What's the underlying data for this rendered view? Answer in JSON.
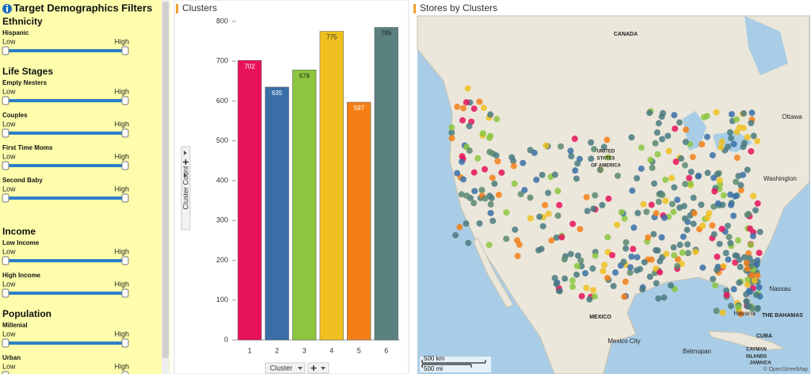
{
  "filters": {
    "title": "Target Demographics Filters",
    "low": "Low",
    "high": "High",
    "groups": [
      {
        "name": "Ethnicity",
        "items": [
          "Hispanic"
        ]
      },
      {
        "name": "Life Stages",
        "items": [
          "Empty Nesters",
          "Couples",
          "First Time Moms",
          "Second Baby"
        ]
      },
      {
        "name": "Income",
        "items": [
          "Low Income",
          "High Income"
        ]
      },
      {
        "name": "Population",
        "items": [
          "Millenial",
          "Urban"
        ]
      }
    ]
  },
  "chart_data": {
    "type": "bar",
    "title": "Clusters",
    "x_label": "Cluster",
    "y_label": "Cluster Count",
    "categories": [
      "1",
      "2",
      "3",
      "4",
      "5",
      "6"
    ],
    "values": [
      702,
      635,
      678,
      775,
      597,
      785
    ],
    "colors": [
      "#e8125c",
      "#3a6ea8",
      "#8cc63f",
      "#f0c020",
      "#f57f17",
      "#5a8080"
    ],
    "ylim": [
      0,
      800
    ],
    "yticks": [
      0,
      100,
      200,
      300,
      400,
      500,
      600,
      700,
      800
    ]
  },
  "map": {
    "title": "Stores by Clusters",
    "labels": [
      "CANADA",
      "UNITED",
      "STATES",
      "OF AMERICA",
      "Ottawa",
      "Washington",
      "MEXICO",
      "Mexico City",
      "Nassau",
      "THE BAHAMAS",
      "Havana",
      "CUBA",
      "Belmopan",
      "CAYMAN",
      "ISLANDS",
      "JAMAICA"
    ],
    "scale": [
      "500 km",
      "500 mi"
    ],
    "attribution": "© OpenStreetMap"
  }
}
